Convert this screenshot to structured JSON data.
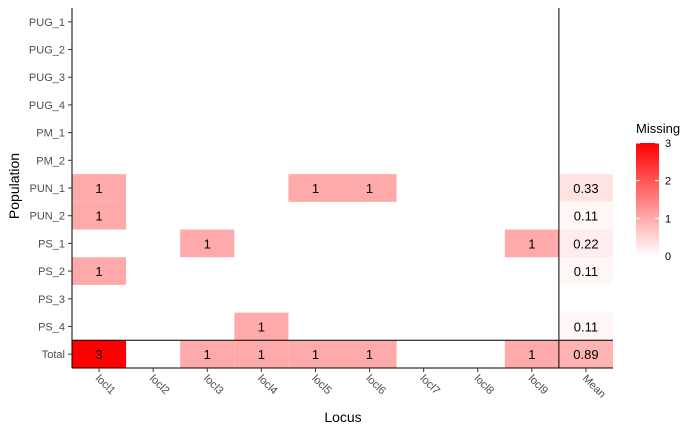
{
  "chart_data": {
    "type": "heatmap",
    "xlabel": "Locus",
    "ylabel": "Population",
    "x_categories": [
      "locl1",
      "locl2",
      "locl3",
      "locl4",
      "locl5",
      "locl6",
      "locl7",
      "locl8",
      "locl9",
      "Mean"
    ],
    "y_categories": [
      "PUG_1",
      "PUG_2",
      "PUG_3",
      "PUG_4",
      "PM_1",
      "PM_2",
      "PUN_1",
      "PUN_2",
      "PS_1",
      "PS_2",
      "PS_3",
      "PS_4",
      "Total"
    ],
    "values": [
      [
        0,
        0,
        0,
        0,
        0,
        0,
        0,
        0,
        0,
        0
      ],
      [
        0,
        0,
        0,
        0,
        0,
        0,
        0,
        0,
        0,
        0
      ],
      [
        0,
        0,
        0,
        0,
        0,
        0,
        0,
        0,
        0,
        0
      ],
      [
        0,
        0,
        0,
        0,
        0,
        0,
        0,
        0,
        0,
        0
      ],
      [
        0,
        0,
        0,
        0,
        0,
        0,
        0,
        0,
        0,
        0
      ],
      [
        0,
        0,
        0,
        0,
        0,
        0,
        0,
        0,
        0,
        0
      ],
      [
        1,
        0,
        0,
        0,
        1,
        1,
        0,
        0,
        0,
        0.33
      ],
      [
        1,
        0,
        0,
        0,
        0,
        0,
        0,
        0,
        0,
        0.11
      ],
      [
        0,
        0,
        1,
        0,
        0,
        0,
        0,
        0,
        1,
        0.22
      ],
      [
        1,
        0,
        0,
        0,
        0,
        0,
        0,
        0,
        0,
        0.11
      ],
      [
        0,
        0,
        0,
        0,
        0,
        0,
        0,
        0,
        0,
        0
      ],
      [
        0,
        0,
        0,
        1,
        0,
        0,
        0,
        0,
        0,
        0.11
      ],
      [
        3,
        0,
        1,
        1,
        1,
        1,
        0,
        0,
        1,
        0.89
      ]
    ],
    "value_labels": [
      [
        "",
        "",
        "",
        "",
        "",
        "",
        "",
        "",
        "",
        ""
      ],
      [
        "",
        "",
        "",
        "",
        "",
        "",
        "",
        "",
        "",
        ""
      ],
      [
        "",
        "",
        "",
        "",
        "",
        "",
        "",
        "",
        "",
        ""
      ],
      [
        "",
        "",
        "",
        "",
        "",
        "",
        "",
        "",
        "",
        ""
      ],
      [
        "",
        "",
        "",
        "",
        "",
        "",
        "",
        "",
        "",
        ""
      ],
      [
        "",
        "",
        "",
        "",
        "",
        "",
        "",
        "",
        "",
        ""
      ],
      [
        "1",
        "",
        "",
        "",
        "1",
        "1",
        "",
        "",
        "",
        "0.33"
      ],
      [
        "1",
        "",
        "",
        "",
        "",
        "",
        "",
        "",
        "",
        "0.11"
      ],
      [
        "",
        "",
        "1",
        "",
        "",
        "",
        "",
        "",
        "1",
        "0.22"
      ],
      [
        "1",
        "",
        "",
        "",
        "",
        "",
        "",
        "",
        "",
        "0.11"
      ],
      [
        "",
        "",
        "",
        "",
        "",
        "",
        "",
        "",
        "",
        ""
      ],
      [
        "",
        "",
        "",
        "1",
        "",
        "",
        "",
        "",
        "",
        "0.11"
      ],
      [
        "3",
        "",
        "1",
        "1",
        "1",
        "1",
        "",
        "",
        "1",
        "0.89"
      ]
    ],
    "legend": {
      "title": "Missing",
      "range": [
        0,
        3
      ],
      "ticks": [
        0,
        1,
        2,
        3
      ],
      "placement": "right",
      "colors": {
        "low": "#ffffff",
        "high": "#ff0000"
      }
    }
  }
}
